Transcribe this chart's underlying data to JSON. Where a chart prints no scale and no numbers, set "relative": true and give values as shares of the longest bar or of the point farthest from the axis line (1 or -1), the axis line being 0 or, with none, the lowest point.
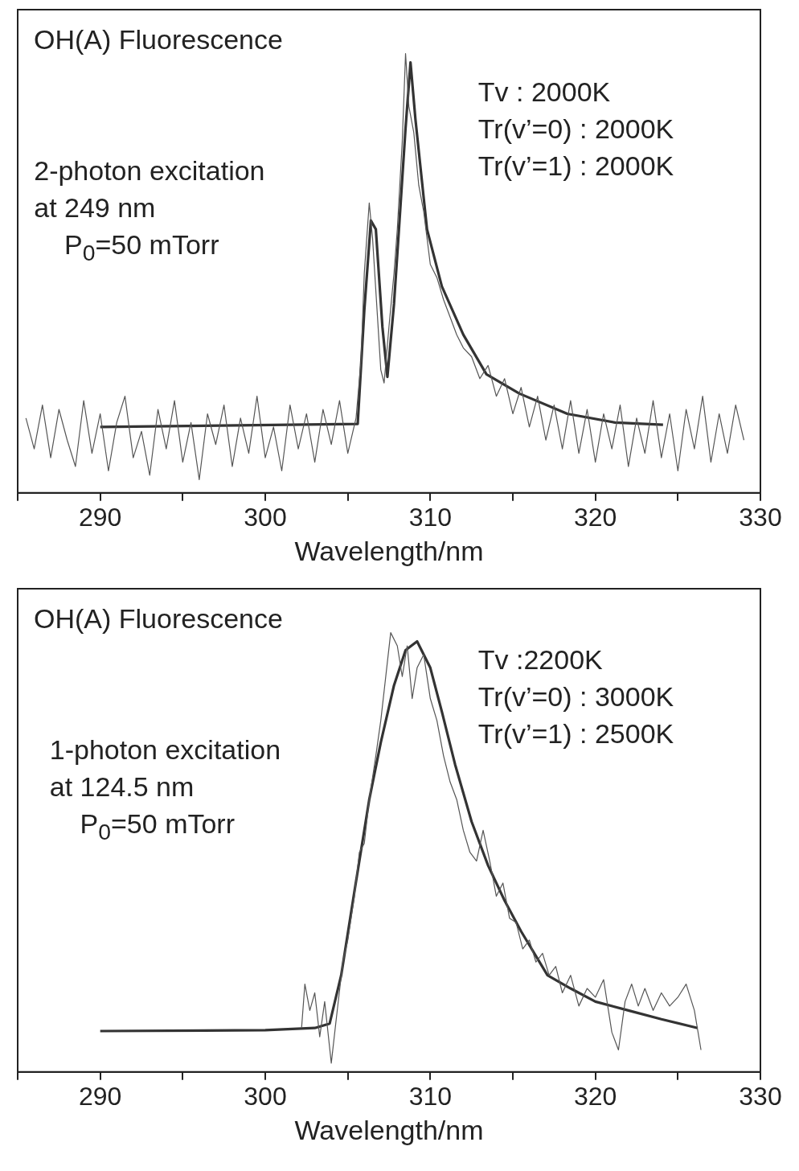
{
  "chart_data": [
    {
      "type": "line",
      "title": "OH(A) Fluorescence",
      "xlabel": "Wavelength/nm",
      "relative": true,
      "xlim": [
        285,
        330
      ],
      "xticks": [
        {
          "value": 285,
          "label": null
        },
        290,
        {
          "value": 295,
          "label": null
        },
        300,
        {
          "value": 305,
          "label": null
        },
        310,
        {
          "value": 315,
          "label": null
        },
        320,
        {
          "value": 325,
          "label": null
        },
        330
      ],
      "grid": false,
      "legend": false,
      "marker": "none",
      "line_style": "solid",
      "annotations": [
        "2-photon excitation\nat 249 nm\n    P$_{0}$=50 mTorr",
        "Tv : 2000K\nTr(v’=0) : 2000K\nTr(v’=1) : 2000K"
      ],
      "series": [
        {
          "color": "#555555",
          "x": [
            285.5,
            286,
            286.5,
            287,
            287.5,
            288,
            288.5,
            289,
            289.5,
            290,
            290.5,
            291,
            291.5,
            292,
            292.5,
            293,
            293.5,
            294,
            294.5,
            295,
            295.5,
            296,
            296.5,
            297,
            297.5,
            298,
            298.5,
            299,
            299.5,
            300,
            300.5,
            301,
            301.5,
            302,
            302.5,
            303,
            303.5,
            304,
            304.5,
            305,
            305.5,
            305.8,
            306,
            306.3,
            306.5,
            306.8,
            307,
            307.2,
            307.5,
            307.8,
            308,
            308.3,
            308.5,
            308.7,
            309,
            309.3,
            309.6,
            310,
            310.4,
            310.8,
            311.2,
            311.6,
            312,
            312.5,
            313,
            313.5,
            314,
            314.5,
            315,
            315.5,
            316,
            316.5,
            317,
            317.5,
            318,
            318.5,
            319,
            319.5,
            320,
            320.5,
            321,
            321.5,
            322,
            322.5,
            323,
            323.5,
            324,
            324.5,
            325,
            325.5,
            326,
            326.5,
            327,
            327.5,
            328,
            328.5,
            329
          ],
          "values": [
            0.17,
            0.1,
            0.2,
            0.08,
            0.19,
            0.12,
            0.06,
            0.21,
            0.09,
            0.18,
            0.05,
            0.16,
            0.22,
            0.08,
            0.14,
            0.04,
            0.19,
            0.1,
            0.21,
            0.07,
            0.16,
            0.03,
            0.18,
            0.11,
            0.2,
            0.06,
            0.17,
            0.09,
            0.22,
            0.08,
            0.15,
            0.05,
            0.2,
            0.1,
            0.18,
            0.07,
            0.19,
            0.11,
            0.21,
            0.09,
            0.17,
            0.3,
            0.5,
            0.66,
            0.58,
            0.4,
            0.28,
            0.25,
            0.38,
            0.5,
            0.6,
            0.8,
            1.0,
            0.88,
            0.82,
            0.7,
            0.64,
            0.52,
            0.49,
            0.44,
            0.4,
            0.36,
            0.33,
            0.31,
            0.26,
            0.29,
            0.22,
            0.26,
            0.18,
            0.24,
            0.15,
            0.22,
            0.12,
            0.2,
            0.1,
            0.21,
            0.09,
            0.19,
            0.07,
            0.18,
            0.1,
            0.2,
            0.06,
            0.17,
            0.09,
            0.21,
            0.08,
            0.18,
            0.05,
            0.19,
            0.1,
            0.22,
            0.07,
            0.18,
            0.09,
            0.2,
            0.12
          ]
        },
        {
          "color": "#333333",
          "x": [
            290,
            305.6,
            306,
            306.4,
            306.7,
            307.1,
            307.4,
            307.8,
            308.1,
            308.5,
            308.8,
            309.1,
            309.8,
            310.7,
            312,
            313.4,
            315.4,
            318.3,
            321.2,
            324.1
          ],
          "values": [
            0.15,
            0.157,
            0.415,
            0.62,
            0.6,
            0.377,
            0.264,
            0.43,
            0.6,
            0.83,
            0.98,
            0.85,
            0.6,
            0.47,
            0.36,
            0.27,
            0.226,
            0.18,
            0.16,
            0.155
          ]
        }
      ]
    },
    {
      "type": "line",
      "title": "OH(A) Fluorescence",
      "xlabel": "Wavelength/nm",
      "relative": true,
      "xlim": [
        285,
        330
      ],
      "xticks": [
        {
          "value": 285,
          "label": null
        },
        290,
        {
          "value": 295,
          "label": null
        },
        300,
        {
          "value": 305,
          "label": null
        },
        310,
        {
          "value": 315,
          "label": null
        },
        320,
        {
          "value": 325,
          "label": null
        },
        330
      ],
      "grid": false,
      "legend": false,
      "marker": "none",
      "line_style": "solid",
      "annotations": [
        "1-photon excitation\nat 124.5 nm\n    P$_{0}$=50 mTorr",
        "Tv :2200K\nTr(v’=0) : 3000K\nTr(v’=1) : 2500K"
      ],
      "series": [
        {
          "color": "#555555",
          "x": [
            302.2,
            302.4,
            302.7,
            303,
            303.3,
            303.6,
            304,
            304.3,
            304.7,
            305,
            305.4,
            305.7,
            306,
            306.3,
            306.7,
            307,
            307.3,
            307.6,
            308,
            308.3,
            308.6,
            308.9,
            309.2,
            309.6,
            310,
            310.4,
            310.8,
            311.2,
            311.6,
            312,
            312.4,
            312.8,
            313.2,
            313.6,
            314,
            314.4,
            314.8,
            315.2,
            315.6,
            316,
            316.4,
            316.8,
            317.2,
            317.6,
            318,
            318.5,
            319,
            319.5,
            320,
            320.5,
            321,
            321.4,
            321.8,
            322.2,
            322.6,
            323,
            323.5,
            324,
            324.5,
            325,
            325.5,
            326,
            326.4
          ],
          "values": [
            0.1,
            0.2,
            0.14,
            0.18,
            0.08,
            0.16,
            0.02,
            0.12,
            0.25,
            0.3,
            0.4,
            0.5,
            0.52,
            0.62,
            0.72,
            0.8,
            0.9,
            1.0,
            0.97,
            0.9,
            0.97,
            0.85,
            0.92,
            0.95,
            0.85,
            0.8,
            0.72,
            0.66,
            0.62,
            0.55,
            0.5,
            0.48,
            0.55,
            0.48,
            0.4,
            0.43,
            0.35,
            0.34,
            0.28,
            0.3,
            0.25,
            0.27,
            0.22,
            0.24,
            0.18,
            0.22,
            0.15,
            0.19,
            0.17,
            0.21,
            0.09,
            0.05,
            0.16,
            0.2,
            0.15,
            0.19,
            0.14,
            0.18,
            0.15,
            0.17,
            0.2,
            0.14,
            0.05
          ]
        },
        {
          "color": "#333333",
          "x": [
            290,
            300,
            303,
            303.9,
            304.6,
            305.4,
            306.3,
            307,
            307.8,
            308.5,
            309.2,
            310,
            310.7,
            311.5,
            312.5,
            313.5,
            314.5,
            315.5,
            317.1,
            318.5,
            320,
            322,
            324,
            326.2
          ],
          "values": [
            0.093,
            0.095,
            0.1,
            0.11,
            0.22,
            0.41,
            0.62,
            0.75,
            0.88,
            0.96,
            0.98,
            0.92,
            0.82,
            0.7,
            0.57,
            0.47,
            0.39,
            0.32,
            0.22,
            0.19,
            0.16,
            0.14,
            0.12,
            0.1
          ]
        }
      ]
    }
  ]
}
